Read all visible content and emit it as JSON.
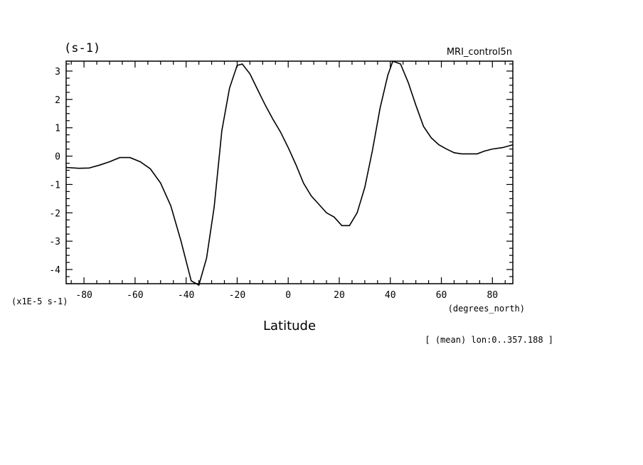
{
  "chart_data": {
    "type": "line",
    "title": "MRI_control5n",
    "units_label": "(s-1)",
    "scale_label": "(x1E-5 s-1)",
    "xlabel": "Latitude",
    "x_units": "(degrees_north)",
    "footnote": "[ (mean) lon:0..357.188 ]",
    "xlim": [
      -87,
      88
    ],
    "ylim": [
      -4.5,
      3.35
    ],
    "x_ticks": [
      -80,
      -60,
      -40,
      -20,
      0,
      20,
      40,
      60,
      80
    ],
    "x_tick_labels": [
      "-80",
      "-60",
      "-40",
      "-20",
      "0",
      "20",
      "40",
      "60",
      "80"
    ],
    "y_ticks": [
      -4,
      -3,
      -2,
      -1,
      0,
      1,
      2,
      3
    ],
    "y_tick_labels": [
      "-4",
      "-3",
      "-2",
      "-1",
      "0",
      "1",
      "2",
      "3"
    ],
    "grid": false,
    "series": [
      {
        "color": "#000000",
        "x": [
          -87,
          -82,
          -78,
          -74,
          -70,
          -66,
          -62,
          -58,
          -54,
          -50,
          -46,
          -42,
          -38,
          -35,
          -32,
          -29,
          -26,
          -23,
          -20,
          -18,
          -15,
          -12,
          -9,
          -6,
          -3,
          0,
          3,
          6,
          9,
          12,
          15,
          18,
          21,
          24,
          27,
          30,
          33,
          36,
          39,
          41,
          44,
          47,
          50,
          53,
          56,
          59,
          62,
          65,
          68,
          71,
          74,
          77,
          80,
          84,
          88
        ],
        "y": [
          -0.4,
          -0.43,
          -0.42,
          -0.32,
          -0.2,
          -0.05,
          -0.05,
          -0.2,
          -0.45,
          -0.95,
          -1.75,
          -3.0,
          -4.4,
          -4.55,
          -3.6,
          -1.8,
          0.9,
          2.4,
          3.2,
          3.25,
          2.9,
          2.35,
          1.8,
          1.3,
          0.85,
          0.3,
          -0.3,
          -0.95,
          -1.4,
          -1.7,
          -2.0,
          -2.15,
          -2.45,
          -2.45,
          -2.0,
          -1.1,
          0.2,
          1.7,
          2.85,
          3.35,
          3.25,
          2.6,
          1.8,
          1.05,
          0.65,
          0.4,
          0.25,
          0.12,
          0.08,
          0.08,
          0.08,
          0.18,
          0.25,
          0.3,
          0.4
        ]
      }
    ]
  }
}
